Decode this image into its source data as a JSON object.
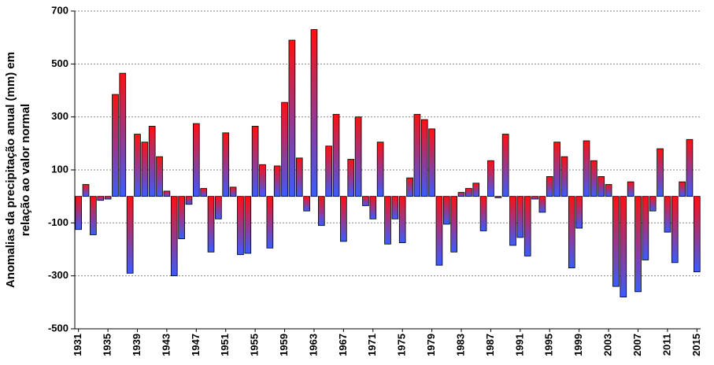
{
  "chart_data": {
    "type": "bar",
    "ylabel": [
      "Anomalias da precipitação anual (mm) em",
      "relação ao valor normal"
    ],
    "categories": [
      "1931",
      null,
      null,
      null,
      "1935",
      null,
      null,
      null,
      "1939",
      null,
      null,
      null,
      "1943",
      null,
      null,
      null,
      "1947",
      null,
      null,
      null,
      "1951",
      null,
      null,
      null,
      "1955",
      null,
      null,
      null,
      "1959",
      null,
      null,
      null,
      "1963",
      null,
      null,
      null,
      "1967",
      null,
      null,
      null,
      "1971",
      null,
      null,
      null,
      "1975",
      null,
      null,
      null,
      "1979",
      null,
      null,
      null,
      "1983",
      null,
      null,
      null,
      "1987",
      null,
      null,
      null,
      "1991",
      null,
      null,
      null,
      "1995",
      null,
      null,
      null,
      "1999",
      null,
      null,
      null,
      "2003",
      null,
      null,
      null,
      "2007",
      null,
      null,
      null,
      "2011",
      null,
      null,
      null,
      "2015"
    ],
    "values": [
      -125,
      45,
      -145,
      -15,
      -10,
      385,
      465,
      -290,
      235,
      205,
      265,
      150,
      20,
      -300,
      -160,
      -30,
      275,
      30,
      -210,
      -85,
      240,
      35,
      -220,
      -215,
      265,
      120,
      -195,
      115,
      355,
      590,
      145,
      -55,
      630,
      -110,
      190,
      310,
      -170,
      140,
      300,
      -35,
      -85,
      205,
      -180,
      -85,
      -175,
      70,
      310,
      290,
      255,
      -260,
      -105,
      -210,
      15,
      30,
      50,
      -130,
      135,
      -5,
      235,
      -185,
      -155,
      -225,
      -10,
      -60,
      75,
      205,
      150,
      -270,
      -120,
      210,
      135,
      75,
      45,
      -340,
      -380,
      55,
      -360,
      -240,
      -55,
      180,
      -135,
      -250,
      55,
      215,
      -285
    ],
    "gradient": [
      "#ff1010",
      "#3a5cff"
    ],
    "ylim": [
      -500,
      700
    ],
    "yticks": [
      -500,
      -300,
      -100,
      100,
      300,
      500,
      700
    ],
    "grid": true
  }
}
